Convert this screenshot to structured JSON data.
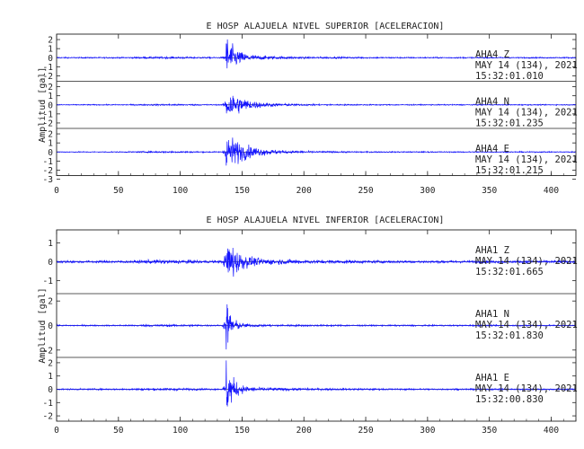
{
  "chart_data": [
    {
      "type": "line",
      "title": "E HOSP ALAJUELA NIVEL SUPERIOR [ACELERACION]",
      "ylabel": "Amplitud [gal]",
      "xlabel": "",
      "xlim": [
        0,
        420
      ],
      "x_ticks": [
        0,
        50,
        100,
        150,
        200,
        250,
        300,
        350,
        400
      ],
      "series": [
        {
          "station": "AHA4",
          "component": "Z",
          "date": "MAY 14 (134), 2021",
          "time": "15:32:01.010",
          "ylim": [
            -2.6,
            2.6
          ],
          "y_ticks": [
            2,
            1,
            0,
            -1,
            -2
          ],
          "noise": 0.06,
          "peak": 2.2,
          "onset": 137,
          "decay": 7,
          "tail": 0.25
        },
        {
          "station": "AHA4",
          "component": "N",
          "date": "MAY 14 (134), 2021",
          "time": "15:32:01.235",
          "ylim": [
            -2.6,
            2.6
          ],
          "y_ticks": [
            2,
            1,
            0,
            -1,
            -2
          ],
          "noise": 0.05,
          "peak": 1.8,
          "onset": 137,
          "decay": 12,
          "tail": 0.15
        },
        {
          "station": "AHA4",
          "component": "E",
          "date": "MAY 14 (134), 2021",
          "time": "15:32:01.215",
          "ylim": [
            -2.6,
            2.6
          ],
          "y_ticks": [
            2,
            1,
            0,
            -1,
            -2,
            -3
          ],
          "noise": 0.05,
          "peak": 1.9,
          "onset": 137,
          "decay": 14,
          "tail": 0.2
        }
      ]
    },
    {
      "type": "line",
      "title": "E HOSP ALAJUELA NIVEL INFERIOR [ACELERACION]",
      "ylabel": "Amplitud [gal]",
      "xlabel": "",
      "xlim": [
        0,
        420
      ],
      "x_ticks": [
        0,
        50,
        100,
        150,
        200,
        250,
        300,
        350,
        400
      ],
      "series": [
        {
          "station": "AHA1",
          "component": "Z",
          "date": "MAY 14 (134), 2021",
          "time": "15:32:01.665",
          "ylim": [
            -1.7,
            1.7
          ],
          "y_ticks": [
            1,
            0,
            -1
          ],
          "noise": 0.06,
          "peak": 1.4,
          "onset": 137,
          "decay": 7,
          "tail": 0.2
        },
        {
          "station": "AHA1",
          "component": "N",
          "date": "MAY 14 (134), 2021",
          "time": "15:32:01.830",
          "ylim": [
            -2.6,
            2.6
          ],
          "y_ticks": [
            2,
            0,
            -2
          ],
          "noise": 0.05,
          "peak": 2.2,
          "onset": 137,
          "decay": 4,
          "tail": 0.1
        },
        {
          "station": "AHA1",
          "component": "E",
          "date": "MAY 14 (134), 2021",
          "time": "15:32:00.830",
          "ylim": [
            -2.4,
            2.4
          ],
          "y_ticks": [
            2,
            1,
            0,
            -1,
            -2
          ],
          "noise": 0.05,
          "peak": 2.1,
          "onset": 137,
          "decay": 5,
          "tail": 0.15
        }
      ]
    }
  ],
  "colors": {
    "trace": "#1414ff",
    "axis": "#222222",
    "zero_line": "#000000"
  }
}
